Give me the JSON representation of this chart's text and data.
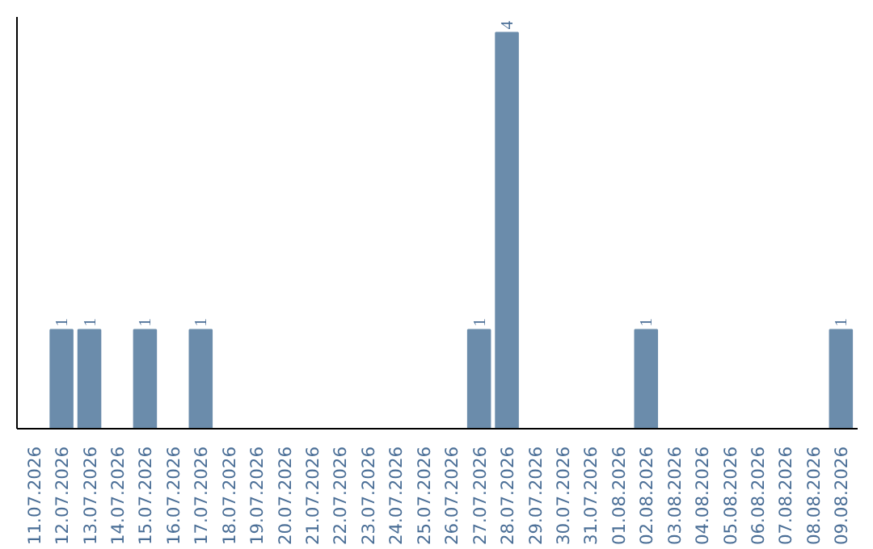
{
  "chart_data": {
    "type": "bar",
    "categories": [
      "11.07.2026",
      "12.07.2026",
      "13.07.2026",
      "14.07.2026",
      "15.07.2026",
      "16.07.2026",
      "17.07.2026",
      "18.07.2026",
      "19.07.2026",
      "20.07.2026",
      "21.07.2026",
      "22.07.2026",
      "23.07.2026",
      "24.07.2026",
      "25.07.2026",
      "26.07.2026",
      "27.07.2026",
      "28.07.2026",
      "29.07.2026",
      "30.07.2026",
      "31.07.2026",
      "01.08.2026",
      "02.08.2026",
      "03.08.2026",
      "04.08.2026",
      "05.08.2026",
      "06.08.2026",
      "07.08.2026",
      "08.08.2026",
      "09.08.2026"
    ],
    "values": [
      null,
      1,
      1,
      null,
      1,
      null,
      1,
      null,
      null,
      null,
      null,
      null,
      null,
      null,
      null,
      null,
      1,
      4,
      null,
      null,
      null,
      null,
      1,
      null,
      null,
      null,
      null,
      null,
      null,
      1
    ],
    "color": "#6b8cab",
    "data_labels": true,
    "tick_labels": "x",
    "grid": false
  }
}
